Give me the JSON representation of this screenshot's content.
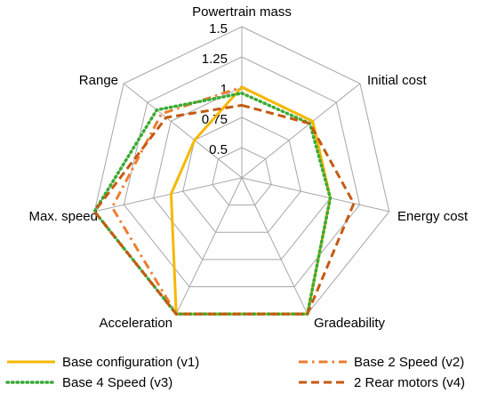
{
  "chart_data": {
    "type": "radar",
    "axes": [
      "Powertrain mass",
      "Initial cost",
      "Energy cost",
      "Gradeability",
      "Acceleration",
      "Max. speed",
      "Range"
    ],
    "ticks": [
      "0.5",
      "0.75",
      "1",
      "1.25",
      "1.5"
    ],
    "rlim": [
      0.25,
      1.5
    ],
    "grid": true,
    "legend_position": "bottom",
    "series": [
      {
        "name": "Base configuration (v1)",
        "color": "#f5b800",
        "dash": "solid",
        "values": [
          1.0,
          1.0,
          1.0,
          1.5,
          1.5,
          0.85,
          0.75
        ]
      },
      {
        "name": "Base 2 Speed (v2)",
        "color": "#ed7d31",
        "dash": "dashdot",
        "values": [
          1.0,
          1.0,
          1.0,
          1.5,
          1.5,
          1.35,
          1.1
        ]
      },
      {
        "name": "Base 4 Speed (v3)",
        "color": "#3aaa35",
        "dash": "dot",
        "values": [
          0.95,
          0.97,
          1.0,
          1.5,
          1.5,
          1.5,
          1.15
        ]
      },
      {
        "name": "2 Rear motors (v4)",
        "color": "#c55a11",
        "dash": "dash",
        "values": [
          0.85,
          0.97,
          1.2,
          1.5,
          1.5,
          1.5,
          1.05
        ]
      }
    ]
  }
}
